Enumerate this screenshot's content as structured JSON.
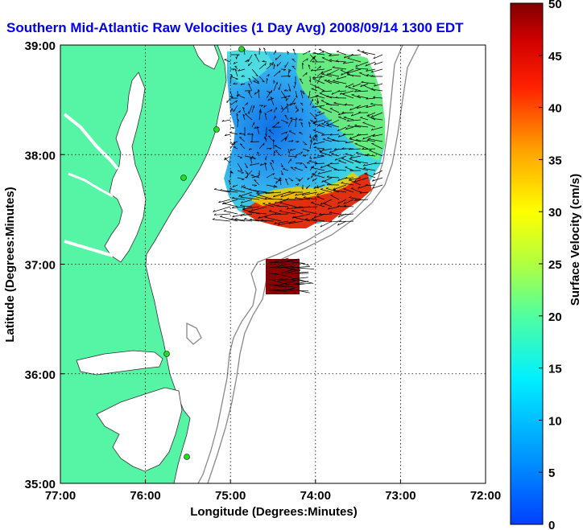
{
  "chart_data": {
    "type": "heatmap",
    "title": "Southern Mid-Atlantic Raw Velocities (1 Day Avg) 2008/09/14 1300 EDT",
    "xlabel": "Longitude (Degrees:Minutes)",
    "ylabel": "Latitude (Degrees:Minutes)",
    "colorbar_label": "Surface Velocity (cm/s)",
    "x_ticks": [
      "77:00",
      "76:00",
      "75:00",
      "74:00",
      "73:00",
      "72:00"
    ],
    "x_tick_values": [
      -77,
      -76,
      -75,
      -74,
      -73,
      -72
    ],
    "y_ticks": [
      "39:00",
      "38:00",
      "37:00",
      "36:00",
      "35:00"
    ],
    "y_tick_values": [
      39,
      38,
      37,
      36,
      35
    ],
    "xlim": [
      -77,
      -72
    ],
    "ylim": [
      35,
      39
    ],
    "colorbar_ticks": [
      "50",
      "45",
      "40",
      "35",
      "30",
      "25",
      "20",
      "15",
      "10",
      "5",
      "0"
    ],
    "colorbar_range": [
      0,
      50
    ],
    "grid": "dotted",
    "land_color": "#55f5a5",
    "ocean_color": "#ffffff",
    "title_color": "#0000ee",
    "colormap": "jet"
  }
}
